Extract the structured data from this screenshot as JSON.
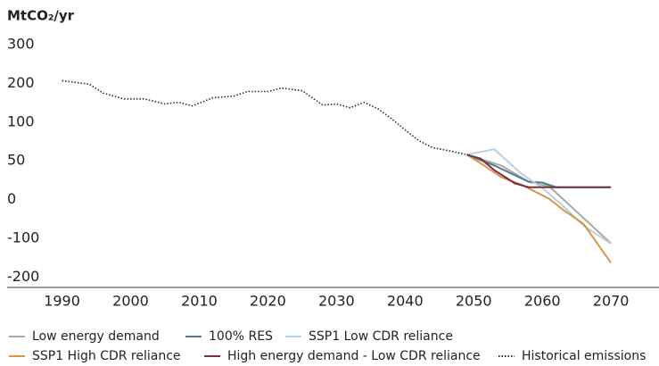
{
  "chart_data": {
    "type": "line",
    "y_label": "MtCO₂/yr",
    "xlim": [
      1982,
      2077
    ],
    "xticks": [
      1990,
      2000,
      2010,
      2020,
      2030,
      2040,
      2050,
      2060,
      2070
    ],
    "ylim": [
      -200,
      300
    ],
    "yticks": [
      300,
      200,
      100,
      50,
      0,
      -100,
      -200
    ],
    "series": [
      {
        "name": "Low energy demand",
        "color": "#a9a9a9",
        "style": "solid",
        "x": [
          2049,
          2054,
          2058,
          2061,
          2070
        ],
        "values": [
          58,
          44,
          23,
          17,
          -113
        ]
      },
      {
        "name": "100% RES",
        "color": "#4e7f8e",
        "style": "solid",
        "x": [
          2049,
          2053,
          2058,
          2060,
          2062,
          2070
        ],
        "values": [
          58,
          44,
          23,
          22,
          16,
          16
        ]
      },
      {
        "name": "SSP1 Low CDR reliance",
        "color": "#b9cfe0",
        "style": "solid",
        "x": [
          2049,
          2053,
          2057,
          2060,
          2063,
          2066,
          2070
        ],
        "values": [
          58,
          65,
          33,
          15,
          -16,
          -67,
          -114
        ]
      },
      {
        "name": "SSP1 High CDR reliance",
        "color": "#d4974a",
        "style": "solid",
        "x": [
          2049,
          2051,
          2054,
          2057,
          2061,
          2063,
          2066,
          2070
        ],
        "values": [
          58,
          47,
          29,
          19,
          1,
          -26,
          -63,
          -163
        ]
      },
      {
        "name": "High energy demand - Low CDR reliance",
        "color": "#7a2e3f",
        "style": "solid",
        "x": [
          2049,
          2051,
          2053,
          2056,
          2058,
          2070
        ],
        "values": [
          58,
          53,
          38,
          21,
          16,
          16
        ]
      },
      {
        "name": "Historical emissions",
        "color": "#1f2a44",
        "style": "dotted",
        "x": [
          1990,
          1994,
          1996,
          1999,
          2002,
          2005,
          2007,
          2009,
          2012,
          2015,
          2017,
          2020,
          2022,
          2025,
          2028,
          2030,
          2032,
          2034,
          2036,
          2038,
          2040,
          2042,
          2044,
          2047,
          2049
        ],
        "values": [
          207,
          198,
          175,
          160,
          160,
          147,
          151,
          142,
          163,
          167,
          179,
          179,
          188,
          181,
          144,
          147,
          137,
          151,
          135,
          109,
          90,
          76,
          67,
          62,
          58
        ]
      }
    ]
  }
}
